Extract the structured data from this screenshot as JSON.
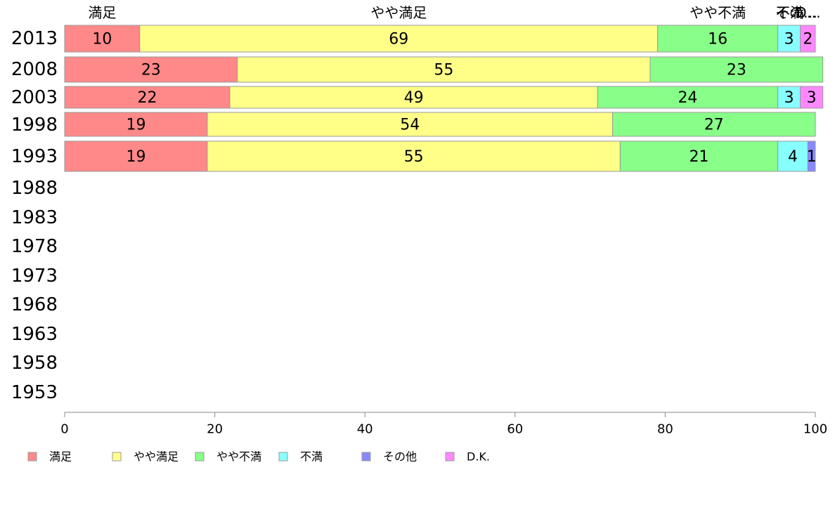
{
  "chart_data": {
    "type": "bar",
    "orientation": "horizontal",
    "stacked": true,
    "categories": [
      "2013",
      "2008",
      "2003",
      "1998",
      "1993",
      "1988",
      "1983",
      "1978",
      "1973",
      "1968",
      "1963",
      "1958",
      "1953"
    ],
    "series": [
      {
        "name": "満足",
        "color": "#ff8888",
        "values": [
          10,
          23,
          22,
          19,
          19,
          null,
          null,
          null,
          null,
          null,
          null,
          null,
          null
        ]
      },
      {
        "name": "やや満足",
        "color": "#ffff88",
        "values": [
          69,
          55,
          49,
          54,
          55,
          null,
          null,
          null,
          null,
          null,
          null,
          null,
          null
        ]
      },
      {
        "name": "やや不満",
        "color": "#88ff88",
        "values": [
          16,
          23,
          24,
          27,
          21,
          null,
          null,
          null,
          null,
          null,
          null,
          null,
          null
        ]
      },
      {
        "name": "不満",
        "color": "#88ffff",
        "values": [
          3,
          0,
          3,
          0,
          4,
          null,
          null,
          null,
          null,
          null,
          null,
          null,
          null
        ]
      },
      {
        "name": "その他",
        "color": "#8888ff",
        "values": [
          0,
          0,
          0,
          0,
          1,
          null,
          null,
          null,
          null,
          null,
          null,
          null,
          null
        ]
      },
      {
        "name": "D.K.",
        "color": "#ff88ff",
        "values": [
          2,
          0,
          3,
          0,
          0,
          null,
          null,
          null,
          null,
          null,
          null,
          null,
          null
        ]
      }
    ],
    "top_labels": [
      "満足",
      "やや満足",
      "やや不満",
      "不満",
      "その…",
      "D…"
    ],
    "xlim": [
      0,
      100
    ],
    "xticks": [
      0,
      20,
      40,
      60,
      80,
      100
    ],
    "legend_position": "bottom",
    "grid": false
  }
}
